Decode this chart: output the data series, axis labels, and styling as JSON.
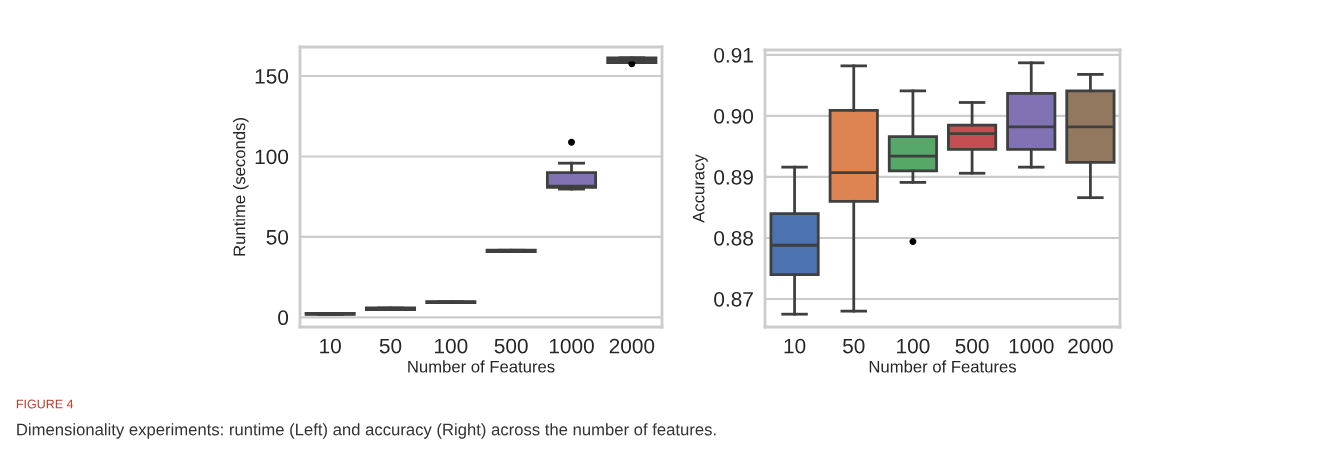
{
  "chart_data": [
    {
      "type": "box",
      "xlabel": "Number of Features",
      "ylabel": "Runtime (seconds)",
      "categories": [
        "10",
        "50",
        "100",
        "500",
        "1000",
        "2000"
      ],
      "colors": [
        "#4c72b0",
        "#dd8452",
        "#55a868",
        "#c44e52",
        "#8172b3",
        "#937860"
      ],
      "boxes": [
        {
          "low": 1.8,
          "q1": 1.8,
          "median": 2.1,
          "q3": 2.4,
          "high": 2.4
        },
        {
          "low": 4.8,
          "q1": 4.8,
          "median": 5.2,
          "q3": 5.8,
          "high": 5.8
        },
        {
          "low": 9.2,
          "q1": 9.2,
          "median": 9.4,
          "q3": 9.7,
          "high": 9.7
        },
        {
          "low": 40.9,
          "q1": 40.9,
          "median": 41.3,
          "q3": 41.7,
          "high": 41.7
        },
        {
          "low": 79.7,
          "q1": 80.8,
          "median": 81.5,
          "q3": 89.9,
          "high": 95.8,
          "outliers": [
            108.8
          ]
        },
        {
          "low": 158.3,
          "q1": 158.3,
          "median": 159.8,
          "q3": 161.3,
          "high": 161.3,
          "outliers": [
            157.6
          ]
        }
      ],
      "ylim": [
        -6,
        168
      ],
      "yticks": [
        0,
        50,
        100,
        150
      ],
      "grid": "y",
      "annotations": [
        "FIGURE 4",
        "Dimensionality experiments: runtime (Left) and accuracy (Right) across the number of features."
      ]
    },
    {
      "type": "box",
      "xlabel": "Number of Features",
      "ylabel": "Accuracy",
      "categories": [
        "10",
        "50",
        "100",
        "500",
        "1000",
        "2000"
      ],
      "colors": [
        "#4c72b0",
        "#dd8452",
        "#55a868",
        "#c44e52",
        "#8172b3",
        "#937860"
      ],
      "boxes": [
        {
          "low": 0.8675,
          "q1": 0.874,
          "median": 0.8788,
          "q3": 0.884,
          "high": 0.8916
        },
        {
          "low": 0.868,
          "q1": 0.886,
          "median": 0.8907,
          "q3": 0.9009,
          "high": 0.9082
        },
        {
          "low": 0.8891,
          "q1": 0.891,
          "median": 0.8934,
          "q3": 0.8966,
          "high": 0.9041,
          "outliers": [
            0.8794
          ]
        },
        {
          "low": 0.8906,
          "q1": 0.8945,
          "median": 0.8971,
          "q3": 0.8985,
          "high": 0.9022
        },
        {
          "low": 0.8916,
          "q1": 0.8945,
          "median": 0.8982,
          "q3": 0.9037,
          "high": 0.9087
        },
        {
          "low": 0.8866,
          "q1": 0.8924,
          "median": 0.8982,
          "q3": 0.9041,
          "high": 0.9068
        }
      ],
      "ylim": [
        0.8654,
        0.9108
      ],
      "yticks": [
        {
          "value": 0.87,
          "label": "0.87"
        },
        {
          "value": 0.88,
          "label": "0.88"
        },
        {
          "value": 0.89,
          "label": "0.89"
        },
        {
          "value": 0.9,
          "label": "0.90"
        },
        {
          "value": 0.91,
          "label": "0.91"
        }
      ],
      "grid": "y"
    }
  ]
}
